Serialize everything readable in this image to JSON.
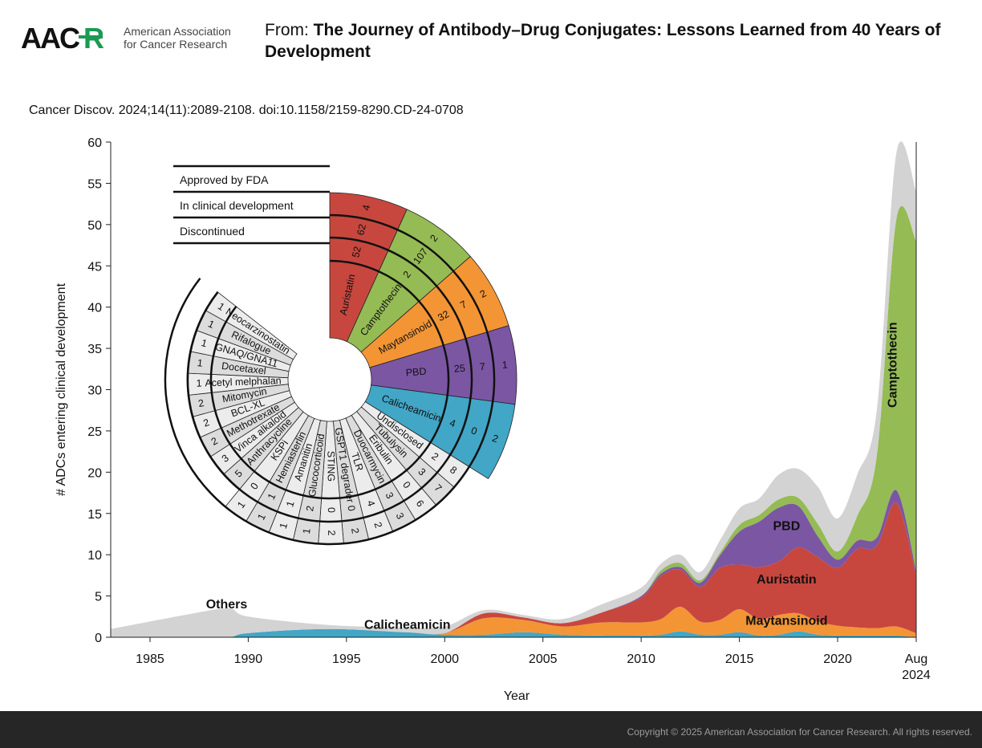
{
  "header": {
    "logo_text": "AACR",
    "org_line1": "American Association",
    "org_line2": "for Cancer Research",
    "from_label": "From:",
    "title": "The Journey of Antibody–Drug Conjugates: Lessons Learned from 40 Years of Development"
  },
  "citation": "Cancer Discov. 2024;14(11):2089-2108. doi:10.1158/2159-8290.CD-24-0708",
  "footer": {
    "copyright": "Copyright © 2025 American Association for Cancer Research. All rights reserved."
  },
  "colors": {
    "auristatin": "#c7473f",
    "camptothecin": "#95bb55",
    "maytansinoid": "#f39535",
    "pbd": "#7b56a3",
    "calicheamicin": "#42a6c6",
    "others": "#d3d3d3"
  },
  "chart_data": [
    {
      "type": "area",
      "stacked": true,
      "title": "",
      "xlabel": "Year",
      "ylabel": "# ADCs entering clinical development",
      "xlim": [
        1983,
        2024
      ],
      "ylim": [
        0,
        60
      ],
      "x_ticks": [
        {
          "value": 1985,
          "label": "1985"
        },
        {
          "value": 1990,
          "label": "1990"
        },
        {
          "value": 1995,
          "label": "1995"
        },
        {
          "value": 2000,
          "label": "2000"
        },
        {
          "value": 2005,
          "label": "2005"
        },
        {
          "value": 2010,
          "label": "2010"
        },
        {
          "value": 2015,
          "label": "2015"
        },
        {
          "value": 2020,
          "label": "2020"
        },
        {
          "value": 2024,
          "label": "Aug",
          "label2": "2024"
        }
      ],
      "y_ticks": [
        0,
        5,
        10,
        15,
        20,
        25,
        30,
        35,
        40,
        45,
        50,
        55,
        60
      ],
      "x": [
        1983,
        1987,
        1989,
        1990,
        1994,
        1998,
        2000,
        2002,
        2004,
        2006,
        2008,
        2010,
        2011,
        2012,
        2013,
        2014,
        2015,
        2016,
        2017,
        2018,
        2019,
        2020,
        2021,
        2022,
        2023,
        2024
      ],
      "series": [
        {
          "name": "Calicheamicin",
          "label": "Calicheamicin",
          "color": "#42a6c6",
          "values": [
            0,
            0,
            0,
            0.5,
            1.0,
            0.6,
            0.3,
            0.3,
            0.6,
            0.3,
            0.2,
            0.2,
            0.3,
            0.7,
            0.3,
            0.3,
            0.6,
            0.2,
            0.3,
            0.7,
            0.3,
            0.2,
            0.2,
            0.2,
            0.2,
            0
          ]
        },
        {
          "name": "Maytansinoid",
          "label": "Maytansinoid",
          "color": "#f39535",
          "values": [
            0,
            0,
            0,
            0,
            0,
            0,
            0.2,
            2.0,
            1.5,
            1.0,
            1.6,
            1.6,
            1.9,
            3.0,
            1.6,
            1.8,
            2.8,
            2.0,
            2.4,
            2.2,
            1.6,
            1.2,
            1.0,
            0.9,
            1.1,
            0.5
          ]
        },
        {
          "name": "Auristatin",
          "label": "Auristatin",
          "color": "#c7473f",
          "values": [
            0,
            0,
            0,
            0,
            0,
            0,
            0,
            0.6,
            0.3,
            0.4,
            1.2,
            3.0,
            5.2,
            4.5,
            4.2,
            6.3,
            5.4,
            6.3,
            6.5,
            8.0,
            7.8,
            7.0,
            9.5,
            10.0,
            15.0,
            7.0
          ]
        },
        {
          "name": "PBD",
          "label": "PBD",
          "color": "#7b56a3",
          "values": [
            0,
            0,
            0,
            0,
            0,
            0,
            0,
            0,
            0,
            0,
            0,
            0.2,
            0.3,
            0.3,
            0.5,
            1.5,
            4.0,
            5.5,
            6.5,
            5.0,
            2.5,
            1.0,
            1.0,
            1.0,
            1.5,
            0.5
          ]
        },
        {
          "name": "Camptothecin",
          "label": "Camptothecin",
          "color": "#95bb55",
          "values": [
            0,
            0,
            0,
            0,
            0,
            0,
            0,
            0,
            0,
            0,
            0,
            0,
            0.4,
            0.5,
            0.3,
            0.3,
            0.8,
            0.8,
            1.0,
            1.0,
            1.5,
            1.0,
            3.0,
            10.0,
            33.0,
            40.0
          ]
        },
        {
          "name": "Others",
          "label": "Others",
          "color": "#d3d3d3",
          "values": [
            1.0,
            2.8,
            3.5,
            2.0,
            0.5,
            0.6,
            0.8,
            0.4,
            0.3,
            0.5,
            1.0,
            1.0,
            0.8,
            1.0,
            1.0,
            1.5,
            2.0,
            2.0,
            3.0,
            3.5,
            4.5,
            4.0,
            5.0,
            5.5,
            8.0,
            6.0
          ]
        }
      ]
    },
    {
      "type": "radial-table",
      "legend_rows": [
        "Approved by FDA",
        "In clinical development",
        "Discontinued"
      ],
      "payloads": [
        {
          "name": "Auristatin",
          "color": "#c7473f",
          "approved": "4",
          "clinical": "62",
          "discontinued": "52"
        },
        {
          "name": "Camptothecin",
          "color": "#95bb55",
          "approved": "2",
          "clinical": "107",
          "discontinued": "2"
        },
        {
          "name": "Maytansinoid",
          "color": "#f39535",
          "approved": "2",
          "clinical": "7",
          "discontinued": "32"
        },
        {
          "name": "PBD",
          "color": "#7b56a3",
          "approved": "1",
          "clinical": "7",
          "discontinued": "25"
        },
        {
          "name": "Calicheamicin",
          "color": "#42a6c6",
          "approved": "2",
          "clinical": "0",
          "discontinued": "4"
        },
        {
          "name": "Undisclosed",
          "color": "#ececec",
          "clinical": "8",
          "discontinued": "2"
        },
        {
          "name": "Tubulysin",
          "color": "#dcdcdc",
          "clinical": "7",
          "discontinued": "3"
        },
        {
          "name": "Eribulin",
          "color": "#ececec",
          "clinical": "6",
          "discontinued": "0"
        },
        {
          "name": "Duocarmycin",
          "color": "#dcdcdc",
          "clinical": "3",
          "discontinued": "3"
        },
        {
          "name": "TLR",
          "color": "#ececec",
          "clinical": "2",
          "discontinued": "4"
        },
        {
          "name": "GSPT1 degrader",
          "color": "#dcdcdc",
          "clinical": "2",
          "discontinued": "0"
        },
        {
          "name": "STING",
          "color": "#ececec",
          "clinical": "2",
          "discontinued": "0"
        },
        {
          "name": "Glucocorticoid",
          "color": "#dcdcdc",
          "clinical": "1",
          "discontinued": "2"
        },
        {
          "name": "Amanitin",
          "color": "#ececec",
          "clinical": "1",
          "discontinued": "1"
        },
        {
          "name": "Hemiasterlin",
          "color": "#dcdcdc",
          "clinical": "1",
          "discontinued": "1"
        },
        {
          "name": "KSPi",
          "color": "#ececec",
          "clinical": "1",
          "discontinued": "0"
        },
        {
          "name": "Anthracycline",
          "color": "#dcdcdc",
          "discontinued": "5"
        },
        {
          "name": "Vinca alkaloid",
          "color": "#ececec",
          "discontinued": "3"
        },
        {
          "name": "Methotrexate",
          "color": "#dcdcdc",
          "discontinued": "2"
        },
        {
          "name": "BCL-XL",
          "color": "#ececec",
          "discontinued": "2"
        },
        {
          "name": "Mitomycin",
          "color": "#dcdcdc",
          "discontinued": "2"
        },
        {
          "name": "Acetyl melphalan",
          "color": "#ececec",
          "discontinued": "1"
        },
        {
          "name": "Docetaxel",
          "color": "#dcdcdc",
          "discontinued": "1"
        },
        {
          "name": "GNAQ/GNA11",
          "color": "#ececec",
          "discontinued": "1"
        },
        {
          "name": "Rifalogue",
          "color": "#dcdcdc",
          "discontinued": "1"
        },
        {
          "name": "Neocarzinostatin",
          "color": "#ececec",
          "discontinued": "1"
        }
      ]
    }
  ]
}
